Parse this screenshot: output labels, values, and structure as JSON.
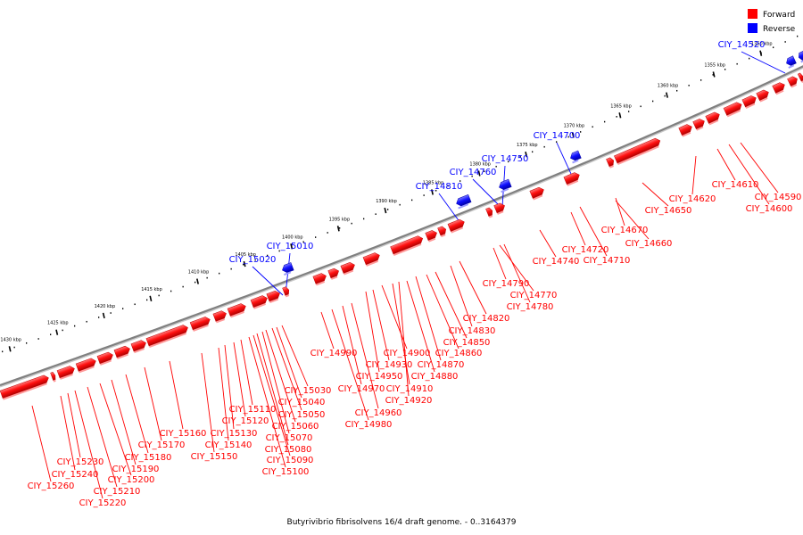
{
  "caption": "Butyrivibrio fibrisolvens 16/4 draft genome. - 0..3164379",
  "legend": [
    {
      "label": "Forward",
      "color": "#ff0000"
    },
    {
      "label": "Reverse",
      "color": "#0000ff"
    }
  ],
  "colors": {
    "forward": "#ff0000",
    "reverse": "#0000ff",
    "backbone": "#808080"
  },
  "scale": {
    "unit": "kbp",
    "ticks": [
      "1350 kbp",
      "1355 kbp",
      "1360 kbp",
      "1365 kbp",
      "1370 kbp",
      "1375 kbp",
      "1380 kbp",
      "1385 kbp",
      "1390 kbp",
      "1395 kbp",
      "1400 kbp",
      "1405 kbp",
      "1410 kbp",
      "1415 kbp",
      "1420 kbp",
      "1425 kbp",
      "1430 kbp"
    ]
  },
  "reverse_labels": [
    "CIY_14520",
    "CIY_14700",
    "CIY_14750",
    "CIY_14760",
    "CIY_14810",
    "CIY_15010",
    "CIY_15020"
  ],
  "forward_labels": [
    "CIY_14590",
    "CIY_14600",
    "CIY_14610",
    "CIY_14620",
    "CIY_14650",
    "CIY_14660",
    "CIY_14670",
    "CIY_14710",
    "CIY_14720",
    "CIY_14740",
    "CIY_14770",
    "CIY_14780",
    "CIY_14790",
    "CIY_14820",
    "CIY_14830",
    "CIY_14850",
    "CIY_14860",
    "CIY_14870",
    "CIY_14880",
    "CIY_14900",
    "CIY_14910",
    "CIY_14920",
    "CIY_14930",
    "CIY_14950",
    "CIY_14960",
    "CIY_14970",
    "CIY_14980",
    "CIY_14990",
    "CIY_15030",
    "CIY_15040",
    "CIY_15050",
    "CIY_15060",
    "CIY_15070",
    "CIY_15080",
    "CIY_15090",
    "CIY_15100",
    "CIY_15110",
    "CIY_15120",
    "CIY_15130",
    "CIY_15140",
    "CIY_15150",
    "CIY_15160",
    "CIY_15170",
    "CIY_15180",
    "CIY_15190",
    "CIY_15200",
    "CIY_15210",
    "CIY_15220",
    "CIY_15230",
    "CIY_15240",
    "CIY_15260"
  ]
}
